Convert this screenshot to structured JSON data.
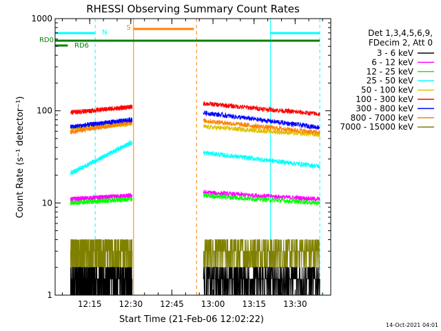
{
  "chart_data": {
    "type": "line",
    "title": "RHESSI Observing Summary Count Rates",
    "xlabel": "Start Time (21-Feb-06 12:02:22)",
    "ylabel": "Count Rate (s⁻¹ detector⁻¹)",
    "y_scale": "log",
    "ylim": [
      1,
      1000
    ],
    "xlim": [
      "12:02:22",
      "13:43:00"
    ],
    "x_tick_labels": [
      "12:15",
      "12:30",
      "12:45",
      "13:00",
      "13:15",
      "13:30"
    ],
    "y_tick_labels": [
      "1",
      "10",
      "100",
      "1000"
    ],
    "footer_timestamp": "14-Oct-2021 04:01",
    "legend": {
      "header": [
        "Det 1,3,4,5,6,9,",
        "FDecim 2, Att 0"
      ],
      "placement": "right"
    },
    "flags": [
      {
        "label": "N",
        "color": "#00ffff",
        "intervals": [
          [
            "12:02",
            "12:17"
          ],
          [
            "13:21",
            "13:39"
          ]
        ]
      },
      {
        "label": "S",
        "color": "#ff8000",
        "intervals": [
          [
            "12:31",
            "12:53"
          ]
        ]
      },
      {
        "label": "RD0",
        "color": "#008000",
        "intervals": [
          [
            "12:02",
            "13:39"
          ]
        ]
      },
      {
        "label": "RD6",
        "color": "#008000",
        "intervals": [
          [
            "12:02",
            "12:07"
          ]
        ]
      }
    ],
    "vertical_markers": [
      {
        "time": "12:17",
        "color": "#00ffff",
        "style": "dashed"
      },
      {
        "time": "12:31",
        "color": "#ff8000",
        "style": "solid"
      },
      {
        "time": "12:54",
        "color": "#ff8000",
        "style": "dashed"
      },
      {
        "time": "13:21",
        "color": "#00ffff",
        "style": "solid"
      },
      {
        "time": "13:39",
        "color": "#00ffff",
        "style": "dashed"
      }
    ],
    "data_gap": [
      "12:31",
      "12:56"
    ],
    "series": [
      {
        "name": "3 - 6 keV",
        "color": "#000000",
        "values": {
          "12:08": 1.6,
          "12:30": 1.6,
          "12:57": 1.5,
          "13:39": 1.6
        }
      },
      {
        "name": "6 - 12 keV",
        "color": "#ff00ff",
        "values": {
          "12:08": 11,
          "12:30": 12,
          "12:57": 13,
          "13:39": 11
        }
      },
      {
        "name": "12 - 25 keV",
        "color": "#00ff00",
        "values": {
          "12:08": 10,
          "12:30": 11,
          "12:57": 12,
          "13:39": 10
        }
      },
      {
        "name": "25 - 50 keV",
        "color": "#00ffff",
        "values": {
          "12:08": 21,
          "12:30": 45,
          "12:57": 35,
          "13:39": 25
        }
      },
      {
        "name": "50 - 100 keV",
        "color": "#e0c000",
        "values": {
          "12:08": 65,
          "12:30": 72,
          "12:57": 67,
          "13:39": 55
        }
      },
      {
        "name": "100 - 300 keV",
        "color": "#ff0000",
        "values": {
          "12:08": 96,
          "12:30": 110,
          "12:57": 120,
          "13:39": 92
        }
      },
      {
        "name": "300 - 800 keV",
        "color": "#0000ff",
        "values": {
          "12:08": 67,
          "12:30": 80,
          "12:57": 95,
          "13:39": 66
        }
      },
      {
        "name": "800 - 7000 keV",
        "color": "#ff8000",
        "values": {
          "12:08": 59,
          "12:30": 75,
          "12:57": 78,
          "13:39": 58
        }
      },
      {
        "name": "7000 - 15000 keV",
        "color": "#808000",
        "values": {
          "12:08": 2.8,
          "12:30": 2.8,
          "12:57": 3.0,
          "13:39": 3.0
        }
      }
    ]
  }
}
